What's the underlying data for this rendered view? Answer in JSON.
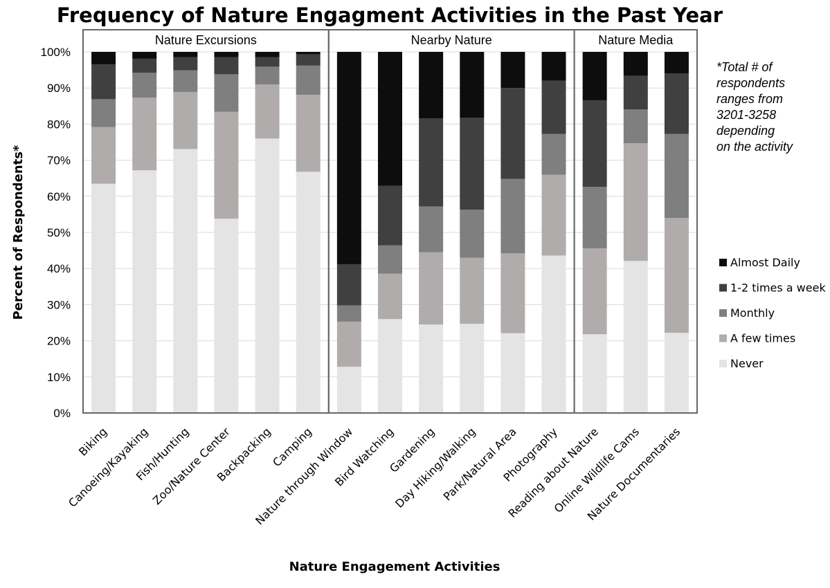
{
  "chart_data": {
    "type": "bar",
    "stacked": true,
    "title": "Frequency of Nature Engagment Activities in the Past Year",
    "xlabel": "Nature Engagement Activities",
    "ylabel": "Percent of Respondents*",
    "ylim": [
      0,
      100
    ],
    "yticks": [
      "0%",
      "10%",
      "20%",
      "30%",
      "40%",
      "50%",
      "60%",
      "70%",
      "80%",
      "90%",
      "100%"
    ],
    "grid": true,
    "legend_placement": "right",
    "note": [
      "*Total # of",
      "respondents",
      "ranges from",
      "3201-3258",
      "depending",
      "on the activity"
    ],
    "panels": [
      {
        "label": "Nature Excursions",
        "count": 6
      },
      {
        "label": "Nearby Nature",
        "count": 6
      },
      {
        "label": "Nature Media",
        "count": 3
      }
    ],
    "categories": [
      "Biking",
      "Canoeing/Kayaking",
      "Fish/Hunting",
      "Zoo/Nature Center",
      "Backpacking",
      "Camping",
      "Nature through Window",
      "Bird Watching",
      "Gardening",
      "Day Hiking/Walking",
      "Park/Natural Area",
      "Photography",
      "Reading about Nature",
      "Online Wildlife Cams",
      "Nature Documentaries"
    ],
    "series": [
      {
        "name": "Never",
        "color": "#e4e4e4",
        "values": [
          63.5,
          67.2,
          73.1,
          53.8,
          76.0,
          66.8,
          12.8,
          26.0,
          24.5,
          24.7,
          22.1,
          43.6,
          21.8,
          42.1,
          22.2
        ]
      },
      {
        "name": "A few times",
        "color": "#b0acab",
        "values": [
          15.7,
          20.1,
          15.8,
          29.6,
          15.0,
          21.3,
          12.5,
          12.6,
          20.0,
          18.3,
          22.1,
          22.4,
          23.8,
          32.6,
          31.8
        ]
      },
      {
        "name": "Monthly",
        "color": "#7f7f7f",
        "values": [
          7.7,
          6.9,
          6.0,
          10.4,
          4.9,
          8.1,
          4.5,
          7.8,
          12.7,
          13.3,
          20.6,
          11.3,
          17.0,
          9.4,
          23.3
        ]
      },
      {
        "name": "1-2 times a week",
        "color": "#404040",
        "values": [
          9.6,
          3.9,
          3.6,
          4.7,
          2.6,
          3.1,
          11.4,
          16.5,
          24.4,
          25.5,
          25.2,
          14.7,
          24.0,
          9.3,
          16.7
        ]
      },
      {
        "name": "Almost Daily",
        "color": "#0d0d0d",
        "values": [
          3.5,
          1.9,
          1.5,
          1.5,
          1.5,
          0.7,
          58.8,
          37.1,
          18.4,
          18.2,
          10.0,
          8.0,
          13.4,
          6.6,
          6.0
        ]
      }
    ],
    "legend_order": [
      "Almost Daily",
      "1-2 times a week",
      "Monthly",
      "A few times",
      "Never"
    ]
  }
}
